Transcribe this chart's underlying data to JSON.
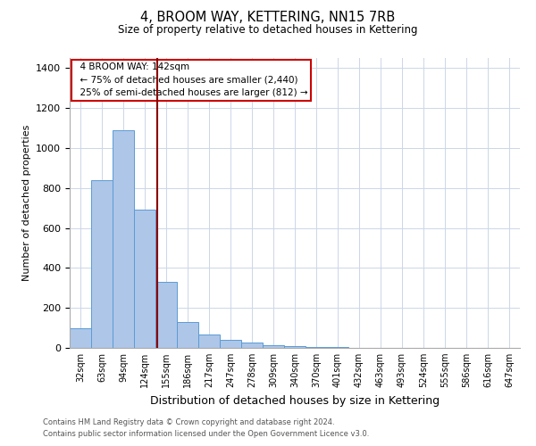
{
  "title": "4, BROOM WAY, KETTERING, NN15 7RB",
  "subtitle": "Size of property relative to detached houses in Kettering",
  "xlabel": "Distribution of detached houses by size in Kettering",
  "ylabel": "Number of detached properties",
  "footnote1": "Contains HM Land Registry data © Crown copyright and database right 2024.",
  "footnote2": "Contains public sector information licensed under the Open Government Licence v3.0.",
  "categories": [
    "32sqm",
    "63sqm",
    "94sqm",
    "124sqm",
    "155sqm",
    "186sqm",
    "217sqm",
    "247sqm",
    "278sqm",
    "309sqm",
    "340sqm",
    "370sqm",
    "401sqm",
    "432sqm",
    "463sqm",
    "493sqm",
    "524sqm",
    "555sqm",
    "586sqm",
    "616sqm",
    "647sqm"
  ],
  "values": [
    100,
    840,
    1090,
    690,
    330,
    130,
    65,
    40,
    25,
    15,
    10,
    5,
    5,
    0,
    0,
    0,
    0,
    0,
    0,
    0,
    0
  ],
  "bar_color": "#aec6e8",
  "bar_edge_color": "#5b9bd5",
  "annotation_text": "  4 BROOM WAY: 142sqm\n  ← 75% of detached houses are smaller (2,440)\n  25% of semi-detached houses are larger (812) →",
  "annotation_box_color": "#ffffff",
  "annotation_box_edge": "#cc0000",
  "vertical_line_color": "#8b0000",
  "ylim": [
    0,
    1450
  ],
  "yticks": [
    0,
    200,
    400,
    600,
    800,
    1000,
    1200,
    1400
  ],
  "background_color": "#ffffff",
  "grid_color": "#ccd6e8"
}
